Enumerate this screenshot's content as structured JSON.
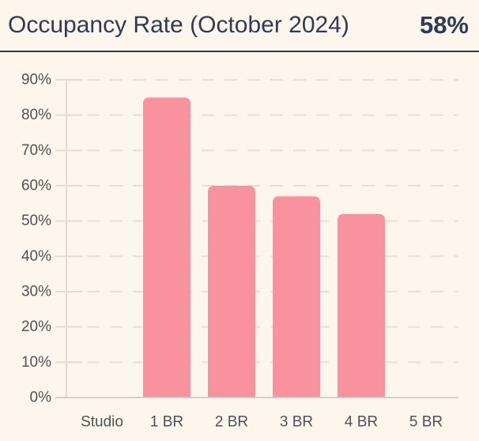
{
  "header": {
    "title": "Occupancy Rate (October 2024)",
    "value": "58%"
  },
  "colors": {
    "background": "#FDF6EC",
    "header_text": "#2F3B52",
    "divider": "#2F3B52",
    "bar": "#F8929E",
    "axis_text": "#515158",
    "gridline": "#E6E0D6",
    "axis_line": "#E2DCD2",
    "baseline": "#CFC9C0"
  },
  "chart_data": {
    "type": "bar",
    "title": "Occupancy Rate (October 2024)",
    "categories": [
      "Studio",
      "1 BR",
      "2 BR",
      "3 BR",
      "4 BR",
      "5 BR"
    ],
    "values": [
      0,
      85,
      60,
      57,
      52,
      0
    ],
    "xlabel": "",
    "ylabel": "",
    "ylim": [
      0,
      90
    ],
    "ytick_step": 10,
    "ytick_labels": [
      "0%",
      "10%",
      "20%",
      "30%",
      "40%",
      "50%",
      "60%",
      "70%",
      "80%",
      "90%"
    ],
    "grid": true,
    "grid_style": "dashed",
    "legend": false,
    "bar_color": "#F8929E",
    "headline_value": "58%"
  }
}
